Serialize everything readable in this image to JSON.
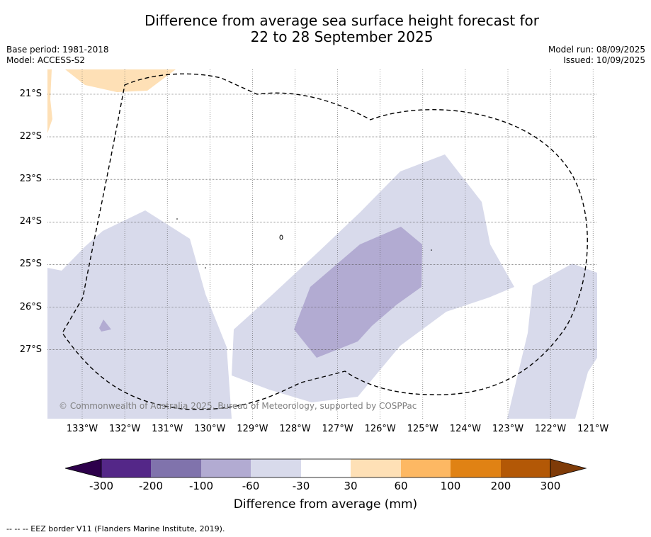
{
  "title_line1": "Difference from average sea surface height forecast for",
  "title_line2": "22 to 28 September 2025",
  "meta_left": [
    "Base period: 1981-2018",
    "Model: ACCESS-S2"
  ],
  "meta_right": [
    "Model run: 08/09/2025",
    "Issued: 10/09/2025"
  ],
  "map": {
    "lat_labels": [
      "21°S",
      "22°S",
      "23°S",
      "24°S",
      "25°S",
      "26°S",
      "27°S"
    ],
    "lon_labels": [
      "133°W",
      "132°W",
      "131°W",
      "130°W",
      "129°W",
      "128°W",
      "127°W",
      "126°W",
      "125°W",
      "124°W",
      "123°W",
      "122°W",
      "121°W"
    ],
    "copyright": "© Commonwealth of Australia 2025, Bureau of Meteorology, supported by COSPPac"
  },
  "legend": {
    "ticks": [
      "-300",
      "-200",
      "-100",
      "-60",
      "-30",
      "30",
      "60",
      "100",
      "200",
      "300"
    ],
    "colors": [
      "#2d004b",
      "#542788",
      "#8073ac",
      "#b2abd2",
      "#d8daeb",
      "#ffffff",
      "#fee0b6",
      "#fdb863",
      "#e08214",
      "#b35806",
      "#7f3b08"
    ],
    "label": "Difference from average (mm)"
  },
  "footnote": "-- -- -- EEZ border V11 (Flanders Marine Institute, 2019)."
}
